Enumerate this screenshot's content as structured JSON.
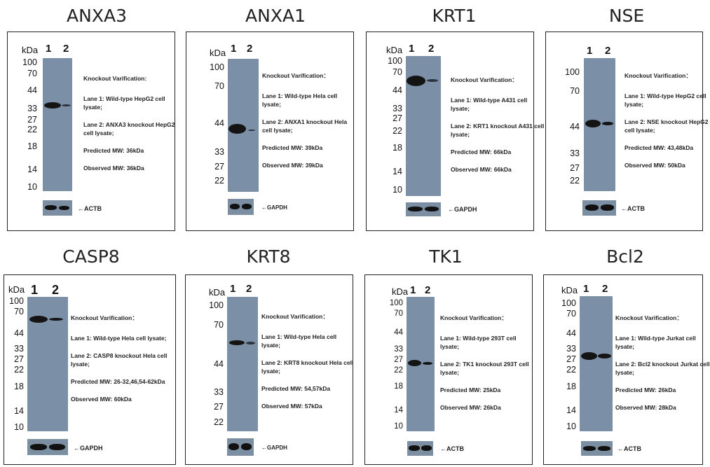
{
  "panels": [
    {
      "title": "ANXA3",
      "kda": "kDa",
      "lanes": [
        "1",
        "2"
      ],
      "markers": [
        "100",
        "70",
        "44",
        "33",
        "27",
        "22",
        "18",
        "14",
        "10"
      ],
      "verification": "Knockout Varification:",
      "lane1": "Lane 1: Wild-type HepG2 cell lysate;",
      "lane2": "Lane 2: ANXA3 knockout HepG2 cell lysate;",
      "predicted": "Predicted MW: 36kDa",
      "observed": "Observed MW: 36kDa",
      "control": "←ACTB"
    },
    {
      "title": "ANXA1",
      "kda": "kDa",
      "lanes": [
        "1",
        "2"
      ],
      "markers": [
        "100",
        "70",
        "44",
        "33",
        "27",
        "22"
      ],
      "verification": "Knockout Varification：",
      "lane1": "Lane 1: Wild-type Hela cell lysate;",
      "lane2": "Lane 2: ANXA1 knockout Hela cell lysate;",
      "predicted": "Predicted MW: 39kDa",
      "observed": "Observed MW: 39kDa",
      "control": "←GAPDH"
    },
    {
      "title": "KRT1",
      "kda": "kDa",
      "lanes": [
        "1",
        "2"
      ],
      "markers": [
        "100",
        "70",
        "44",
        "33",
        "27",
        "22",
        "18",
        "14",
        "10"
      ],
      "verification": "Knockout Varification：",
      "lane1": "Lane 1: Wild-type A431 cell lysate;",
      "lane2": "Lane 2: KRT1 knockout A431 cell lysate;",
      "predicted": "Predicted MW: 66kDa",
      "observed": "Observed MW: 66kDa",
      "control": "←GAPDH"
    },
    {
      "title": "NSE",
      "kda": "kDa",
      "lanes": [
        "1",
        "2"
      ],
      "markers": [
        "100",
        "70",
        "44",
        "33",
        "27",
        "22"
      ],
      "verification": "Knockout Varification：",
      "lane1": "Lane 1: Wild-type HepG2 cell lysate;",
      "lane2": "Lane 2: NSE knockout HepG2 cell lysate;",
      "predicted": "Predicted MW: 43,48kDa",
      "observed": "Observed MW: 50kDa",
      "control": "←ACTB"
    },
    {
      "title": "CASP8",
      "kda": "kDa",
      "lanes": [
        "1",
        "2"
      ],
      "markers": [
        "100",
        "70",
        "44",
        "33",
        "27",
        "22",
        "18",
        "14",
        "10"
      ],
      "verification": "Knockout Varification：",
      "lane1": "Lane 1: Wild-type Hela cell lysate;",
      "lane2": "Lane 2: CASP8 knockout Hela cell lysate;",
      "predicted": "Predicted MW: 26-32,46,54-62kDa",
      "observed": "Observed MW: 60kDa",
      "control": "←GAPDH"
    },
    {
      "title": "KRT8",
      "kda": "kDa",
      "lanes": [
        "1",
        "2"
      ],
      "markers": [
        "100",
        "70",
        "44",
        "33",
        "27",
        "22"
      ],
      "verification": "Knockout Varification：",
      "lane1": "Lane 1: Wild-type Hela cell lysate;",
      "lane2": "Lane 2: KRT8 knockout Hela cell lysate;",
      "predicted": "Predicted MW: 54,57kDa",
      "observed": "Observed MW: 57kDa",
      "control": "←GAPDH"
    },
    {
      "title": "TK1",
      "kda": "kDa",
      "lanes": [
        "1",
        "2"
      ],
      "markers": [
        "100",
        "70",
        "44",
        "33",
        "27",
        "22",
        "18",
        "14",
        "10"
      ],
      "verification": "Knockout Varification：",
      "lane1": "Lane 1: Wild-type 293T cell lysate;",
      "lane2": "Lane 2: TK1 knockout 293T cell lysate;",
      "predicted": "Predicted MW: 25kDa",
      "observed": "Observed MW: 26kDa",
      "control": "←ACTB"
    },
    {
      "title": "Bcl2",
      "kda": "kDa",
      "lanes": [
        "1",
        "2"
      ],
      "markers": [
        "100",
        "70",
        "44",
        "33",
        "27",
        "22",
        "18",
        "14",
        "10"
      ],
      "verification": "Knockout Varification：",
      "lane1": "Lane 1: Wild-type Jurkat cell lysate;",
      "lane2": "Lane 2: Bcl2 knockout Jurkat cell lysate;",
      "predicted": "Predicted MW: 26kDa",
      "observed": "Observed MW: 28kDa",
      "control": "←ACTB"
    }
  ]
}
